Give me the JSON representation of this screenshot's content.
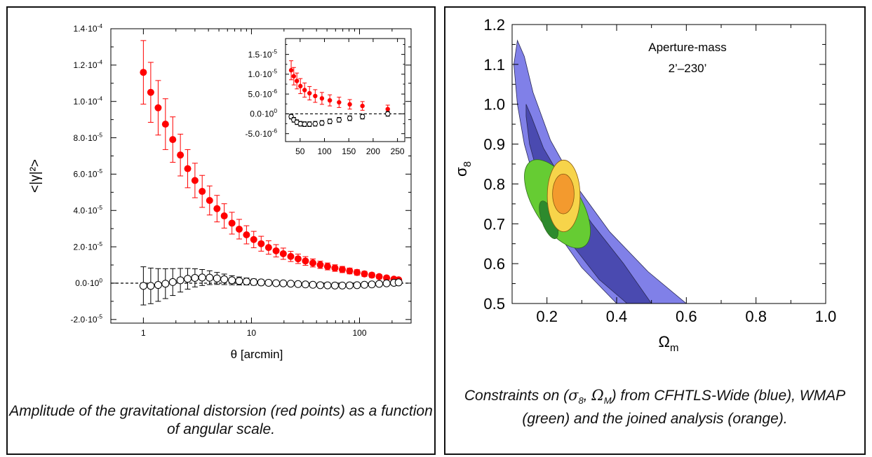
{
  "captions": {
    "left": "Amplitude of the gravitational distorsion (red points) as a function of angular scale.",
    "right_parts": [
      "Constraints on (",
      "σ",
      "8",
      ", ",
      "Ω",
      "M",
      ") from CFHTLS-Wide (blue), WMAP (green) and the joined analysis (orange)."
    ]
  },
  "colors": {
    "signal": "#ff0000",
    "bmode": "#000000",
    "cfhtls_outer": "#8080e8",
    "cfhtls_inner": "#4a4ab0",
    "wmap_outer": "#66cc33",
    "wmap_inner": "#2d8a2d",
    "joint_outer": "#f7d44a",
    "joint_inner": "#f39a2e"
  },
  "chart_data": [
    {
      "type": "scatter",
      "xscale": "log",
      "xlabel": "θ [arcmin]",
      "ylabel": "<|γ|²>",
      "xlim": [
        0.5,
        300
      ],
      "ylim": [
        -2.2e-05,
        0.00014
      ],
      "x_ticks": [
        1,
        10,
        100
      ],
      "x_tick_labels": [
        "1",
        "10",
        "100"
      ],
      "y_ticks": [
        -2e-05,
        0,
        2e-05,
        4e-05,
        6e-05,
        8e-05,
        0.0001,
        0.00012,
        0.00014
      ],
      "y_tick_labels": [
        [
          "-2.0·10",
          "-5"
        ],
        [
          "0.0·10",
          "0"
        ],
        [
          "2.0·10",
          "-5"
        ],
        [
          "4.0·10",
          "-5"
        ],
        [
          "6.0·10",
          "-5"
        ],
        [
          "8.0·10",
          "-5"
        ],
        [
          "1.0·10",
          "-4"
        ],
        [
          "1.2·10",
          "-4"
        ],
        [
          "1.4·10",
          "-4"
        ]
      ],
      "reference_line": 0,
      "series": [
        {
          "marker": "filled-circle",
          "x": [
            1.0,
            1.17,
            1.37,
            1.6,
            1.87,
            2.2,
            2.57,
            3.0,
            3.5,
            4.1,
            4.8,
            5.6,
            6.6,
            7.7,
            9.0,
            10.5,
            12.3,
            14.4,
            16.9,
            19.7,
            23.1,
            27.0,
            31.6,
            37.0,
            43.3,
            50.6,
            59.2,
            69.3,
            81.0,
            94.8,
            111,
            130,
            152,
            178,
            208,
            230
          ],
          "y": [
            0.000116,
            0.000105,
            9.65e-05,
            8.75e-05,
            7.9e-05,
            7.05e-05,
            6.3e-05,
            5.65e-05,
            5.05e-05,
            4.55e-05,
            4.1e-05,
            3.7e-05,
            3.3e-05,
            2.97e-05,
            2.66e-05,
            2.4e-05,
            2.17e-05,
            1.96e-05,
            1.78e-05,
            1.62e-05,
            1.47e-05,
            1.34e-05,
            1.22e-05,
            1.11e-05,
            1.01e-05,
            9.2e-06,
            8.3e-06,
            7.5e-06,
            6.7e-06,
            5.9e-06,
            5.1e-06,
            4.4e-06,
            3.6e-06,
            2.9e-06,
            2.2e-06,
            1.8e-06
          ],
          "yerr": [
            1.75e-05,
            1.65e-05,
            1.5e-05,
            1.4e-05,
            1.25e-05,
            1.15e-05,
            1.05e-05,
            9.5e-06,
            8.8e-06,
            8e-06,
            7.3e-06,
            6.7e-06,
            6e-06,
            5.4e-06,
            5e-06,
            4.5e-06,
            4.1e-06,
            3.7e-06,
            3.4e-06,
            3.1e-06,
            2.8e-06,
            2.6e-06,
            2.4e-06,
            2.2e-06,
            2e-06,
            1.9e-06,
            1.8e-06,
            1.7e-06,
            1.6e-06,
            1.5e-06,
            1.4e-06,
            1.3e-06,
            1.2e-06,
            1.1e-06,
            1e-06,
            1e-06
          ]
        },
        {
          "marker": "open-circle",
          "x": [
            1.0,
            1.17,
            1.37,
            1.6,
            1.87,
            2.2,
            2.57,
            3.0,
            3.5,
            4.1,
            4.8,
            5.6,
            6.6,
            7.7,
            9.0,
            10.5,
            12.3,
            14.4,
            16.9,
            19.7,
            23.1,
            27.0,
            31.6,
            37.0,
            43.3,
            50.6,
            59.2,
            69.3,
            81.0,
            94.8,
            111,
            130,
            152,
            178,
            208,
            230
          ],
          "y": [
            -1.5e-06,
            -1.5e-06,
            -1e-06,
            -3e-07,
            6e-07,
            1.6e-06,
            2.4e-06,
            2.9e-06,
            3.1e-06,
            3e-06,
            2.6e-06,
            2.1e-06,
            1.6e-06,
            1.2e-06,
            9e-07,
            6e-07,
            4e-07,
            2e-07,
            0,
            -1e-07,
            -3e-07,
            -5e-07,
            -7e-07,
            -9e-07,
            -1.1e-06,
            -1.2e-06,
            -1.3e-06,
            -1.3e-06,
            -1.2e-06,
            -1.1e-06,
            -9e-07,
            -7e-07,
            -4e-07,
            -1e-07,
            2e-07,
            4e-07
          ],
          "yerr": [
            1.05e-05,
            9.8e-06,
            9e-06,
            8.2e-06,
            7.4e-06,
            6.5e-06,
            5.7e-06,
            5e-06,
            4.4e-06,
            3.8e-06,
            3.3e-06,
            2.9e-06,
            2.5e-06,
            2.2e-06,
            1.9e-06,
            1.7e-06,
            1.5e-06,
            1.4e-06,
            1.3e-06,
            1.2e-06,
            1.1e-06,
            1e-06,
            1e-06,
            9e-07,
            9e-07,
            8e-07,
            8e-07,
            8e-07,
            7e-07,
            7e-07,
            7e-07,
            7e-07,
            7e-07,
            6e-07,
            6e-07,
            6e-07
          ]
        }
      ]
    },
    {
      "type": "scatter",
      "inset": true,
      "xscale": "linear",
      "xlim": [
        20,
        265
      ],
      "ylim": [
        -7e-06,
        1.9e-05
      ],
      "x_ticks": [
        50,
        100,
        150,
        200,
        250
      ],
      "x_tick_labels": [
        "50",
        "100",
        "150",
        "200",
        "250"
      ],
      "y_ticks": [
        -5e-06,
        0,
        5e-06,
        1e-05,
        1.5e-05
      ],
      "y_tick_labels": [
        [
          "-5.0·10",
          "-6"
        ],
        [
          "0.0·10",
          "0"
        ],
        [
          "5.0·10",
          "-6"
        ],
        [
          "1.0·10",
          "-5"
        ],
        [
          "1.5·10",
          "-5"
        ]
      ],
      "reference_line": 0,
      "series": [
        {
          "marker": "filled-circle",
          "x": [
            31.6,
            37.0,
            43.3,
            50.6,
            59.2,
            69.3,
            81.0,
            94.8,
            111,
            130,
            152,
            178,
            230
          ],
          "y": [
            1.1e-05,
            9.5e-06,
            8.3e-06,
            7e-06,
            6e-06,
            5.2e-06,
            4.5e-06,
            3.9e-06,
            3.4e-06,
            2.9e-06,
            2.4e-06,
            2e-06,
            1.2e-06
          ],
          "yerr": [
            2.4e-06,
            2.2e-06,
            2e-06,
            1.9e-06,
            1.8e-06,
            1.7e-06,
            1.6e-06,
            1.5e-06,
            1.4e-06,
            1.3e-06,
            1.2e-06,
            1.1e-06,
            1e-06
          ]
        },
        {
          "marker": "open-circle",
          "x": [
            31.6,
            37.0,
            43.3,
            50.6,
            59.2,
            69.3,
            81.0,
            94.8,
            111,
            130,
            152,
            178,
            230
          ],
          "y": [
            -7e-07,
            -1.5e-06,
            -2.1e-06,
            -2.5e-06,
            -2.6e-06,
            -2.6e-06,
            -2.5e-06,
            -2.3e-06,
            -1.9e-06,
            -1.5e-06,
            -1.1e-06,
            -7e-07,
            0
          ],
          "yerr": [
            6e-07,
            6e-07,
            6e-07,
            6e-07,
            6e-07,
            6e-07,
            6e-07,
            6e-07,
            6e-07,
            6e-07,
            6e-07,
            6e-07,
            6e-07
          ]
        }
      ]
    },
    {
      "type": "contour",
      "xlabel": "Ω",
      "xlabel_sub": "m",
      "ylabel": "σ",
      "ylabel_sub": "8",
      "xlim": [
        0.1,
        1.0
      ],
      "ylim": [
        0.5,
        1.2
      ],
      "x_ticks": [
        0.2,
        0.4,
        0.6,
        0.8,
        1.0
      ],
      "x_tick_labels": [
        "0.2",
        "0.4",
        "0.6",
        "0.8",
        "1.0"
      ],
      "y_ticks": [
        0.5,
        0.6,
        0.7,
        0.8,
        0.9,
        1.0,
        1.1,
        1.2
      ],
      "y_tick_labels": [
        "0.5",
        "0.6",
        "0.7",
        "0.8",
        "0.9",
        "1.0",
        "1.1",
        "1.2"
      ],
      "annotations": [
        "Aperture-mass",
        "2’–230’"
      ],
      "regions": [
        {
          "level": "outer",
          "color_key": "cfhtls_outer",
          "points": [
            [
              0.115,
              1.16
            ],
            [
              0.135,
              1.12
            ],
            [
              0.16,
              1.03
            ],
            [
              0.21,
              0.91
            ],
            [
              0.28,
              0.8
            ],
            [
              0.38,
              0.68
            ],
            [
              0.49,
              0.58
            ],
            [
              0.6,
              0.5
            ],
            [
              0.4,
              0.5
            ],
            [
              0.3,
              0.59
            ],
            [
              0.22,
              0.69
            ],
            [
              0.17,
              0.79
            ],
            [
              0.135,
              0.9
            ],
            [
              0.115,
              1.0
            ],
            [
              0.105,
              1.1
            ]
          ]
        },
        {
          "level": "inner",
          "color_key": "cfhtls_inner",
          "points": [
            [
              0.14,
              1.0
            ],
            [
              0.155,
              0.97
            ],
            [
              0.19,
              0.89
            ],
            [
              0.25,
              0.8
            ],
            [
              0.33,
              0.7
            ],
            [
              0.42,
              0.6
            ],
            [
              0.5,
              0.5
            ],
            [
              0.43,
              0.5
            ],
            [
              0.35,
              0.56
            ],
            [
              0.27,
              0.65
            ],
            [
              0.21,
              0.74
            ],
            [
              0.175,
              0.82
            ],
            [
              0.15,
              0.9
            ],
            [
              0.14,
              0.97
            ]
          ]
        },
        {
          "level": "outer",
          "color_key": "wmap_outer",
          "ellipse": {
            "cx": 0.23,
            "cy": 0.75,
            "rx": 0.066,
            "ry": 0.126,
            "rot": -32
          }
        },
        {
          "level": "inner",
          "color_key": "wmap_inner",
          "ellipse": {
            "cx": 0.205,
            "cy": 0.71,
            "rx": 0.02,
            "ry": 0.05,
            "rot": -20
          }
        },
        {
          "level": "outer",
          "color_key": "joint_outer",
          "ellipse": {
            "cx": 0.248,
            "cy": 0.77,
            "rx": 0.047,
            "ry": 0.09,
            "rot": 0
          }
        },
        {
          "level": "inner",
          "color_key": "joint_inner",
          "ellipse": {
            "cx": 0.247,
            "cy": 0.775,
            "rx": 0.031,
            "ry": 0.05,
            "rot": 0
          }
        }
      ]
    }
  ]
}
